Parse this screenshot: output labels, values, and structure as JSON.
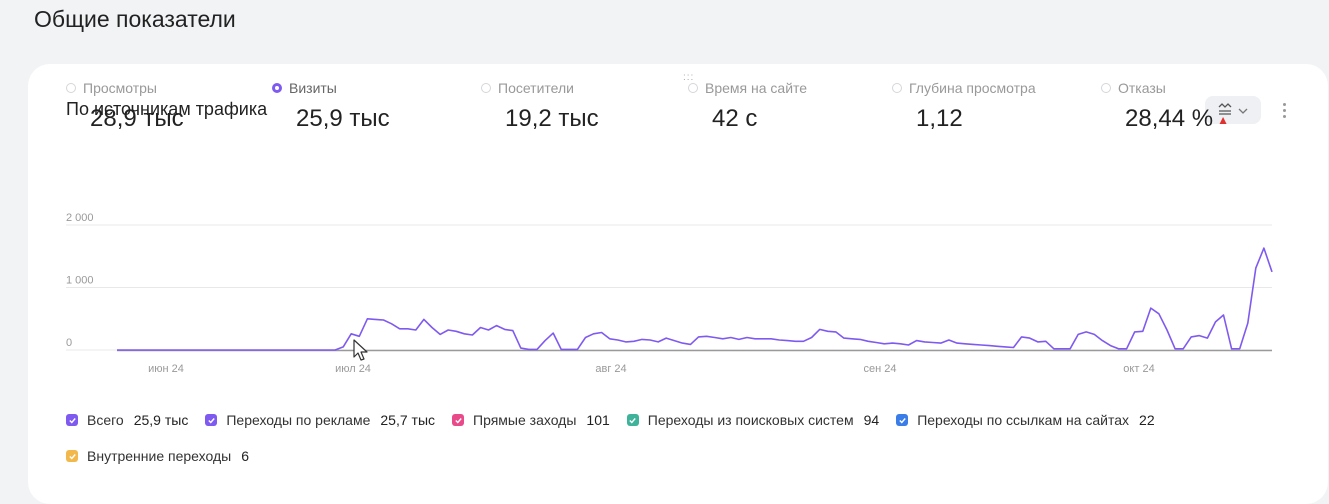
{
  "page": {
    "title": "Общие показатели"
  },
  "widget": {
    "title": "По источникам трафика",
    "handle": ":::",
    "controls": {
      "chart_icon": "chart-type-icon",
      "dropdown_icon": "chevron-down-icon",
      "more_icon": "more-vertical-icon"
    }
  },
  "metrics": [
    {
      "label": "Просмотры",
      "value": "28,9 тыс",
      "selected": false
    },
    {
      "label": "Визиты",
      "value": "25,9 тыс",
      "selected": true
    },
    {
      "label": "Посетители",
      "value": "19,2 тыс",
      "selected": false
    },
    {
      "label": "Время на сайте",
      "value": "42 с",
      "selected": false
    },
    {
      "label": "Глубина просмотра",
      "value": "1,12",
      "selected": false
    },
    {
      "label": "Отказы",
      "value": "28,44 %",
      "selected": false,
      "trend": "▲",
      "trend_color": "#e03030"
    }
  ],
  "chart_data": {
    "type": "line",
    "yticks": [
      "2 000",
      "1 000",
      "0"
    ],
    "ylim": [
      0,
      2000
    ],
    "xticks": [
      "июн 24",
      "июл 24",
      "авг 24",
      "сен 24",
      "окт 24"
    ],
    "grid": true,
    "series": [
      {
        "name": "Всего",
        "color": "#7f5af0",
        "values": [
          0,
          0,
          0,
          0,
          0,
          0,
          0,
          0,
          0,
          0,
          0,
          0,
          0,
          0,
          0,
          0,
          0,
          0,
          0,
          0,
          0,
          0,
          0,
          0,
          0,
          0,
          0,
          0,
          50,
          260,
          220,
          500,
          490,
          480,
          420,
          340,
          340,
          320,
          490,
          360,
          250,
          320,
          300,
          260,
          240,
          360,
          320,
          390,
          330,
          310,
          30,
          10,
          10,
          150,
          270,
          10,
          10,
          10,
          200,
          260,
          280,
          180,
          160,
          130,
          140,
          170,
          160,
          130,
          190,
          150,
          110,
          90,
          210,
          220,
          200,
          180,
          200,
          170,
          200,
          180,
          180,
          180,
          160,
          150,
          140,
          140,
          200,
          330,
          300,
          290,
          190,
          180,
          170,
          140,
          120,
          100,
          110,
          100,
          80,
          150,
          130,
          120,
          110,
          160,
          110,
          100,
          90,
          80,
          70,
          60,
          50,
          40,
          210,
          190,
          130,
          140,
          20,
          20,
          20,
          250,
          290,
          250,
          150,
          70,
          20,
          20,
          290,
          300,
          670,
          580,
          320,
          20,
          20,
          210,
          230,
          190,
          450,
          560,
          20,
          20,
          430,
          1310,
          1630,
          1250
        ]
      },
      {
        "name": "Базовая линия",
        "color": "#9a9a9a",
        "values": []
      }
    ]
  },
  "legend": [
    {
      "label": "Всего",
      "value": "25,9 тыс",
      "color": "#7f5af0"
    },
    {
      "label": "Переходы по рекламе",
      "value": "25,7 тыс",
      "color": "#7f5af0"
    },
    {
      "label": "Прямые заходы",
      "value": "101",
      "color": "#e84a8a"
    },
    {
      "label": "Переходы из поисковых систем",
      "value": "94",
      "color": "#3fb39a"
    },
    {
      "label": "Переходы по ссылкам на сайтах",
      "value": "22",
      "color": "#3b7de8"
    },
    {
      "label": "Внутренние переходы",
      "value": "6",
      "color": "#f2b84b"
    }
  ]
}
